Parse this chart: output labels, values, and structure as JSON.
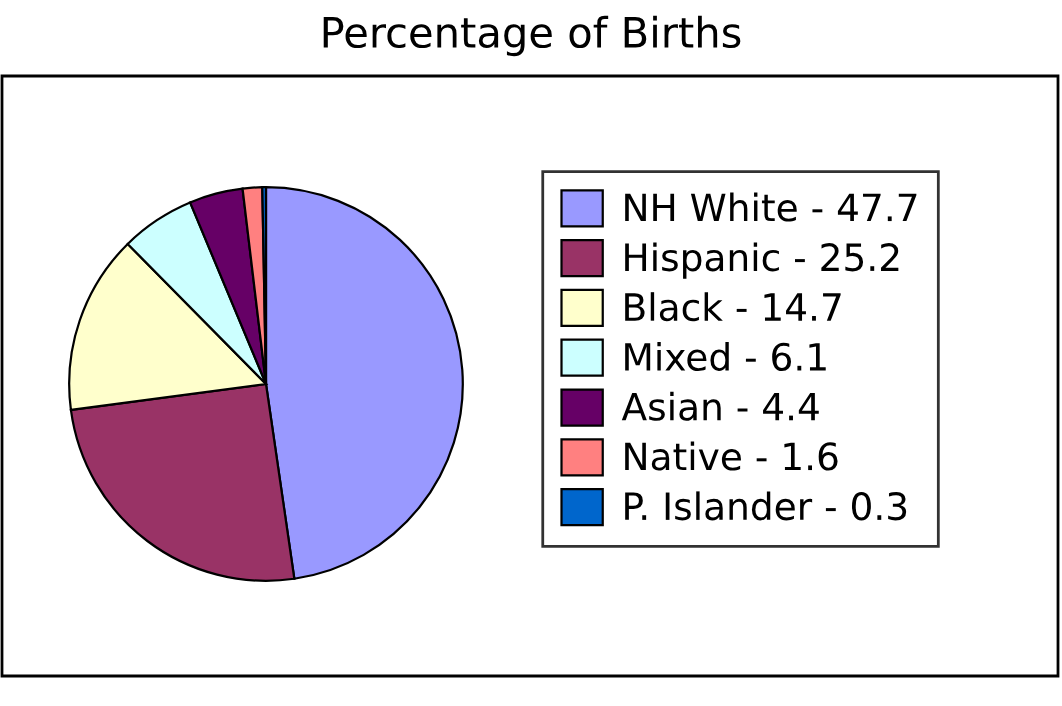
{
  "chart_data": {
    "type": "pie",
    "title": "Percentage of Births",
    "categories": [
      "NH White - 47.7",
      "Hispanic - 25.2",
      "Black - 14.7",
      "Mixed - 6.1",
      "Asian - 4.4",
      "Native - 1.6",
      "P. Islander - 0.3"
    ],
    "values": [
      47.7,
      25.2,
      14.7,
      6.1,
      4.4,
      1.6,
      0.3
    ],
    "colors": [
      "#9999ff",
      "#993366",
      "#ffffcc",
      "#ccffff",
      "#660066",
      "#ff8080",
      "#0066cc"
    ],
    "legend": "right"
  }
}
